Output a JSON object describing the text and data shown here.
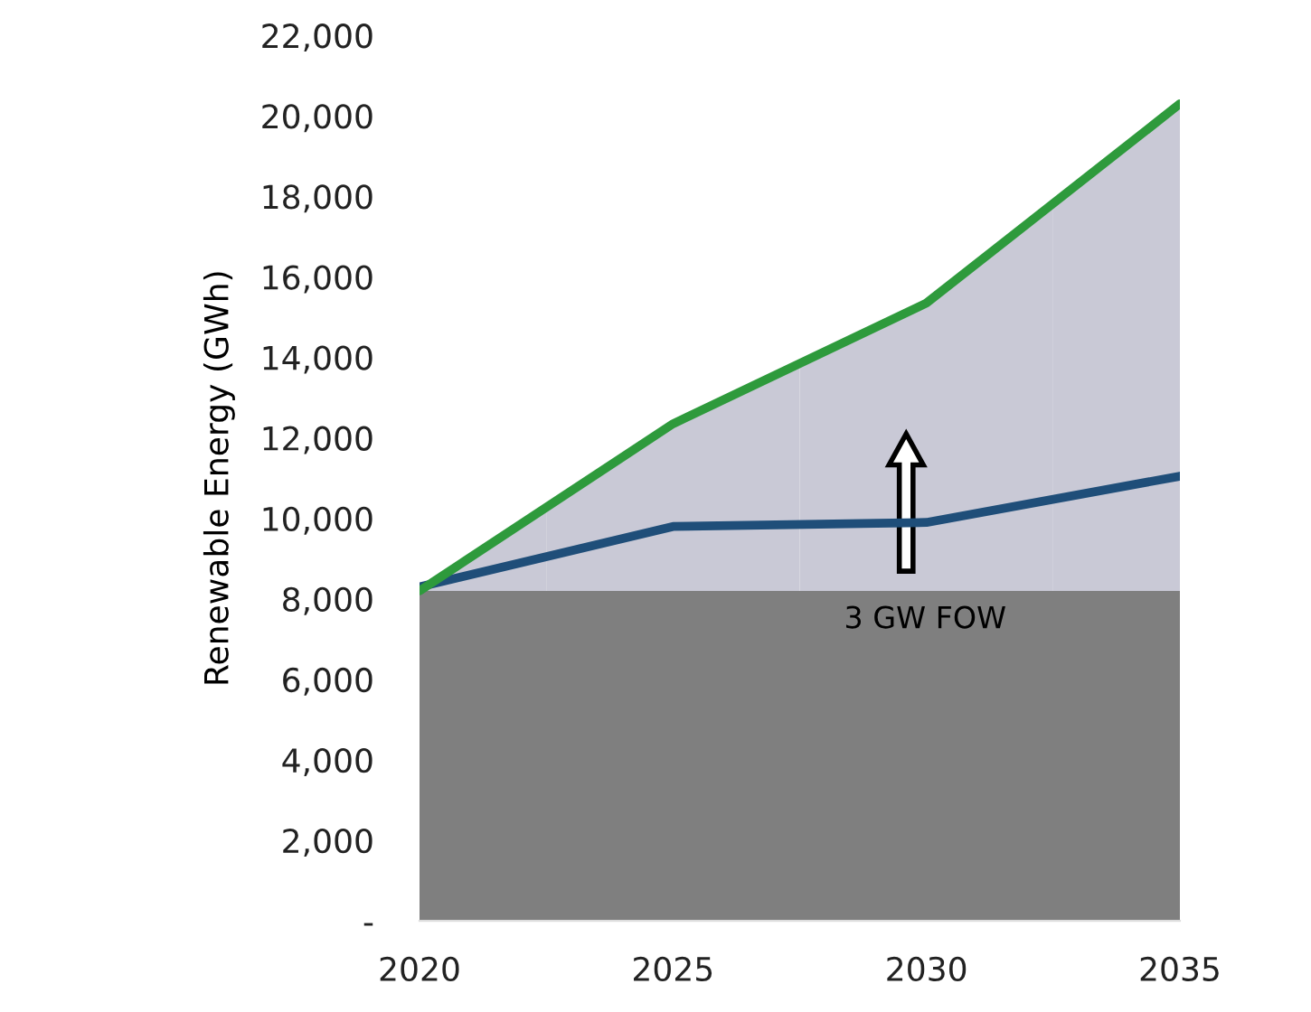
{
  "chart_data": {
    "type": "area",
    "ylabel": "Renewable Energy (GWh)",
    "categories": [
      "2020",
      "2025",
      "2030",
      "2035"
    ],
    "series": [
      {
        "type": "line",
        "color": "#1f4e79",
        "values": [
          8300,
          9800,
          9900,
          11050
        ]
      },
      {
        "color": "#2e9a3c",
        "colors": [
          "#c9c9d6",
          "#c9c9d6",
          "#c9c9d6",
          "#c9c9d6"
        ],
        "values": [
          8200,
          12350,
          15350,
          20300
        ]
      },
      {
        "color": "#7f7f7f",
        "values": [
          8200,
          8200,
          8200,
          8200
        ]
      }
    ],
    "ylim": [
      0,
      22000
    ],
    "yticks": [
      {
        "value": 0,
        "label": "-"
      },
      {
        "value": 2000,
        "label": "2,000"
      },
      {
        "value": 4000,
        "label": "4,000"
      },
      {
        "value": 6000,
        "label": "6,000"
      },
      {
        "value": 8000,
        "label": "8,000"
      },
      {
        "value": 10000,
        "label": "10,000"
      },
      {
        "value": 12000,
        "label": "12,000"
      },
      {
        "value": 14000,
        "label": "14,000"
      },
      {
        "value": 16000,
        "label": "16,000"
      },
      {
        "value": 18000,
        "label": "18,000"
      },
      {
        "value": 20000,
        "label": "20,000"
      },
      {
        "value": 22000,
        "label": "22,000"
      }
    ],
    "grid": false,
    "legend": false,
    "annotations": [
      "3 GW FOW"
    ]
  }
}
